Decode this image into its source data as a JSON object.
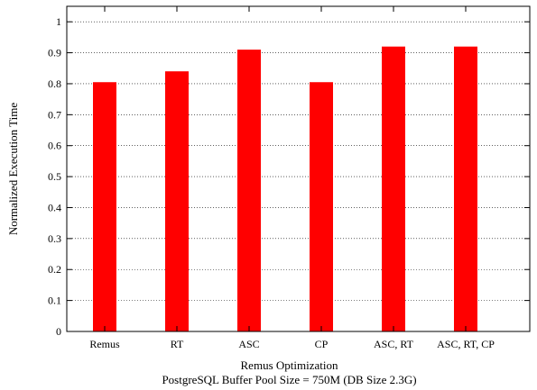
{
  "chart_data": {
    "type": "bar",
    "categories": [
      "Remus",
      "RT",
      "ASC",
      "CP",
      "ASC, RT",
      "ASC, RT, CP"
    ],
    "values": [
      0.805,
      0.84,
      0.91,
      0.805,
      0.92,
      0.92
    ],
    "xlabel": "Remus Optimization",
    "subtitle": "PostgreSQL Buffer Pool Size = 750M (DB Size 2.3G)",
    "ylabel": "Normalized Execution Time",
    "ylim": [
      0,
      1.05
    ],
    "yticks": [
      "0",
      "0.1",
      "0.2",
      "0.3",
      "0.4",
      "0.5",
      "0.6",
      "0.7",
      "0.8",
      "0.9",
      "1"
    ],
    "grid": true,
    "bar_color": "#ff0000"
  }
}
